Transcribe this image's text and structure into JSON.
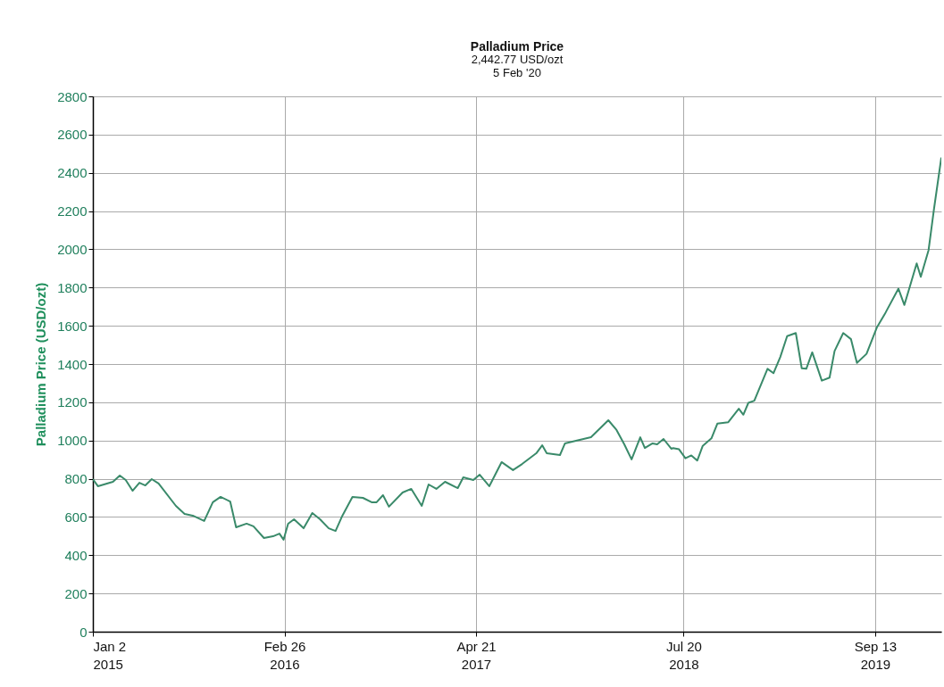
{
  "chart_data": {
    "type": "line",
    "title": "Palladium Price",
    "subtitle": "2,442.77 USD/ozt\n5 Feb '20",
    "ylabel": "Palladium Price (USD/ozt)",
    "x": [
      "2015-01-02",
      "2015-01-13",
      "2015-02-15",
      "2015-03-02",
      "2015-03-15",
      "2015-03-30",
      "2015-04-14",
      "2015-04-27",
      "2015-05-11",
      "2015-05-26",
      "2015-07-03",
      "2015-07-22",
      "2015-08-09",
      "2015-09-03",
      "2015-09-22",
      "2015-10-09",
      "2015-10-30",
      "2015-11-12",
      "2015-12-05",
      "2015-12-20",
      "2016-01-12",
      "2016-02-01",
      "2016-02-15",
      "2016-02-24",
      "2016-03-05",
      "2016-03-18",
      "2016-04-08",
      "2016-04-27",
      "2016-05-14",
      "2016-06-02",
      "2016-06-17",
      "2016-07-02",
      "2016-07-24",
      "2016-08-16",
      "2016-09-04",
      "2016-09-15",
      "2016-09-29",
      "2016-10-12",
      "2016-11-11",
      "2016-11-30",
      "2016-12-23",
      "2017-01-07",
      "2017-01-24",
      "2017-02-12",
      "2017-03-12",
      "2017-03-24",
      "2017-04-15",
      "2017-04-29",
      "2017-05-20",
      "2017-06-16",
      "2017-07-11",
      "2017-07-31",
      "2017-08-31",
      "2017-09-13",
      "2017-09-23",
      "2017-10-22",
      "2017-11-02",
      "2017-11-18",
      "2017-12-29",
      "2018-02-05",
      "2018-02-23",
      "2018-03-12",
      "2018-03-28",
      "2018-04-16",
      "2018-04-26",
      "2018-05-13",
      "2018-05-23",
      "2018-06-06",
      "2018-06-23",
      "2018-06-27",
      "2018-07-10",
      "2018-07-24",
      "2018-08-06",
      "2018-08-19",
      "2018-08-31",
      "2018-09-19",
      "2018-10-02",
      "2018-10-26",
      "2018-11-18",
      "2018-11-28",
      "2018-12-09",
      "2018-12-22",
      "2019-01-20",
      "2019-02-02",
      "2019-02-17",
      "2019-03-04",
      "2019-03-23",
      "2019-04-05",
      "2019-04-15",
      "2019-04-28",
      "2019-05-19",
      "2019-06-05",
      "2019-06-16",
      "2019-07-05",
      "2019-07-22",
      "2019-08-04",
      "2019-08-25",
      "2019-09-17",
      "2019-10-06",
      "2019-11-03",
      "2019-11-16",
      "2019-12-13",
      "2019-12-22",
      "2020-01-08",
      "2020-01-20",
      "2020-02-05"
    ],
    "series": [
      {
        "color": "#3a8a6a",
        "values": [
          798,
          761,
          784,
          817,
          793,
          737,
          779,
          765,
          798,
          775,
          658,
          616,
          607,
          579,
          677,
          705,
          681,
          546,
          565,
          551,
          490,
          499,
          513,
          481,
          565,
          588,
          541,
          621,
          588,
          541,
          527,
          607,
          705,
          700,
          677,
          677,
          714,
          654,
          728,
          747,
          658,
          770,
          747,
          784,
          751,
          807,
          793,
          821,
          761,
          887,
          845,
          877,
          933,
          975,
          933,
          924,
          985,
          994,
          1017,
          1106,
          1055,
          980,
          901,
          1017,
          961,
          985,
          980,
          1008,
          957,
          960,
          954,
          907,
          922,
          895,
          972,
          1011,
          1088,
          1096,
          1166,
          1135,
          1197,
          1208,
          1375,
          1352,
          1437,
          1546,
          1562,
          1378,
          1375,
          1461,
          1313,
          1329,
          1468,
          1562,
          1530,
          1406,
          1453,
          1593,
          1670,
          1794,
          1709,
          1926,
          1856,
          1995,
          2212,
          2480
        ]
      }
    ],
    "xlim": [
      "2015-01-02",
      "2020-02-05"
    ],
    "xticks": [
      {
        "value": "2015-01-02",
        "label": "Jan 2\n2015"
      },
      {
        "value": "2016-02-26",
        "label": "Feb 26\n2016"
      },
      {
        "value": "2017-04-21",
        "label": "Apr 21\n2017"
      },
      {
        "value": "2018-07-20",
        "label": "Jul 20\n2018"
      },
      {
        "value": "2019-09-13",
        "label": "Sep 13\n2019"
      }
    ],
    "ylim": [
      0,
      2800
    ],
    "yticks": [
      0,
      200,
      400,
      600,
      800,
      1000,
      1200,
      1400,
      1600,
      1800,
      2000,
      2200,
      2400,
      2600,
      2800
    ],
    "grid": true,
    "line_style": "solid"
  }
}
